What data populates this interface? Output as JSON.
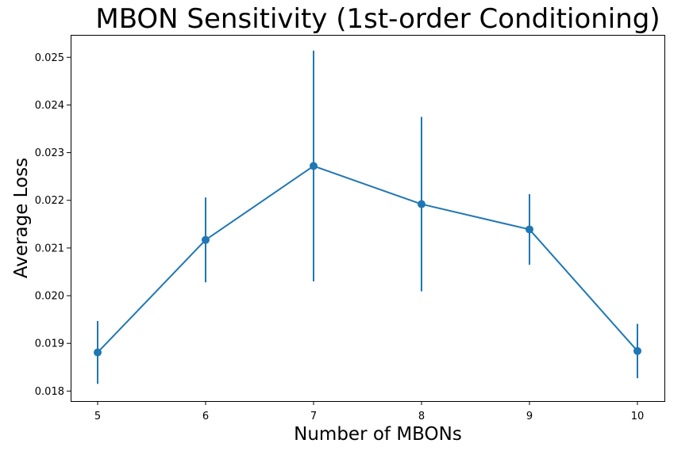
{
  "chart_data": {
    "type": "line",
    "title": "MBON Sensitivity (1st-order Conditioning)",
    "xlabel": "Number of MBONs",
    "ylabel": "Average Loss",
    "x": [
      5,
      6,
      7,
      8,
      9,
      10
    ],
    "series": [
      {
        "values": [
          0.01881,
          0.02117,
          0.02272,
          0.02192,
          0.02139,
          0.01884
        ],
        "error": [
          0.00066,
          0.00089,
          0.00242,
          0.00183,
          0.00074,
          0.00057
        ],
        "color": "#1f77b4",
        "marker": "circle",
        "error_bars": "vertical"
      }
    ],
    "xticks": [
      "5",
      "6",
      "7",
      "8",
      "9",
      "10"
    ],
    "yticks": [
      "0.018",
      "0.019",
      "0.020",
      "0.021",
      "0.022",
      "0.023",
      "0.024",
      "0.025"
    ],
    "xlim": [
      4.75,
      10.25
    ],
    "ylim": [
      0.01779,
      0.02547
    ],
    "grid": false,
    "legend": false
  }
}
